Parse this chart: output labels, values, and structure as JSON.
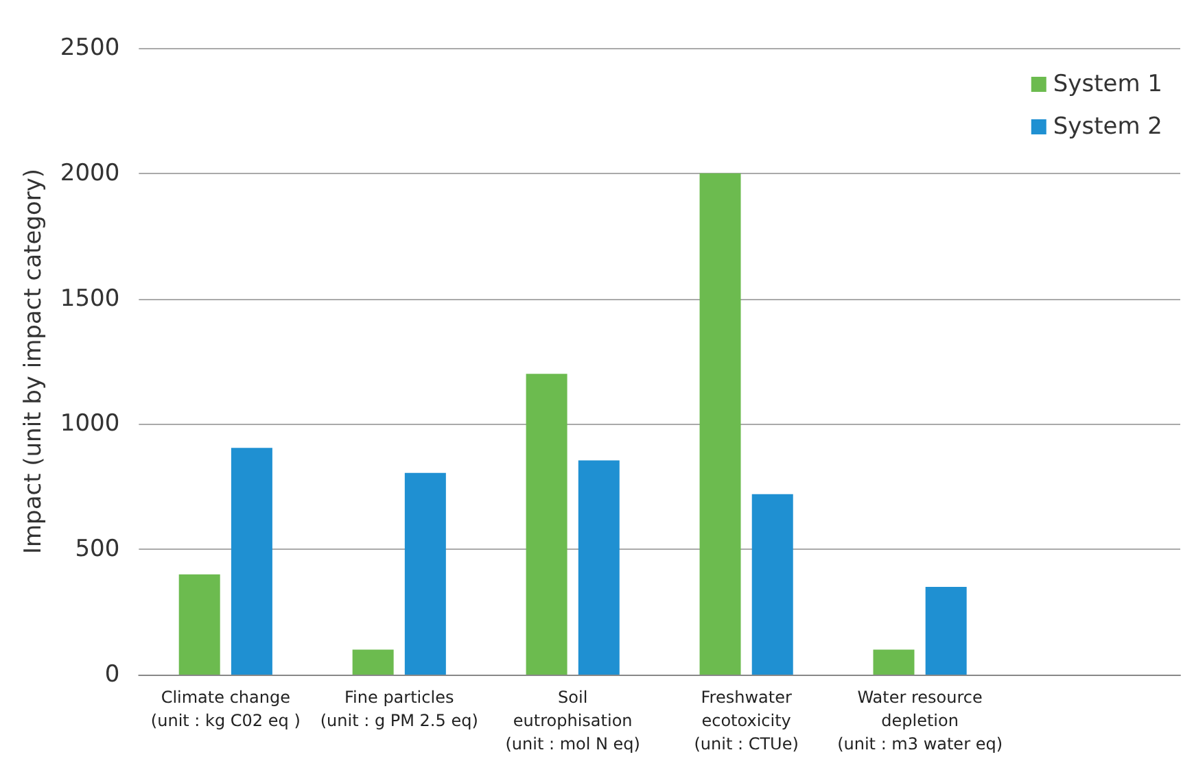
{
  "chart_data": {
    "type": "bar",
    "ylabel": "Impact (unit by impact category)",
    "categories": [
      "Climate change\n(unit : kg C02 eq )",
      "Fine particles\n(unit : g PM 2.5 eq)",
      "Soil\neutrophisation\n(unit : mol N eq)",
      "Freshwater\necotoxicity\n(unit : CTUe)",
      "Water resource\ndepletion\n(unit : m3 water eq)",
      null
    ],
    "series": [
      {
        "name": "System 1",
        "color": "#6cbb4f",
        "values": [
          400,
          100,
          1200,
          2000,
          100,
          null
        ]
      },
      {
        "name": "System 2",
        "color": "#1f90d2",
        "values": [
          905,
          805,
          855,
          720,
          350,
          null
        ]
      }
    ],
    "ylim": [
      0,
      2500
    ],
    "yticks": [
      0,
      500,
      1000,
      1500,
      2000,
      2500
    ],
    "grid": "y",
    "legend": "top right"
  }
}
